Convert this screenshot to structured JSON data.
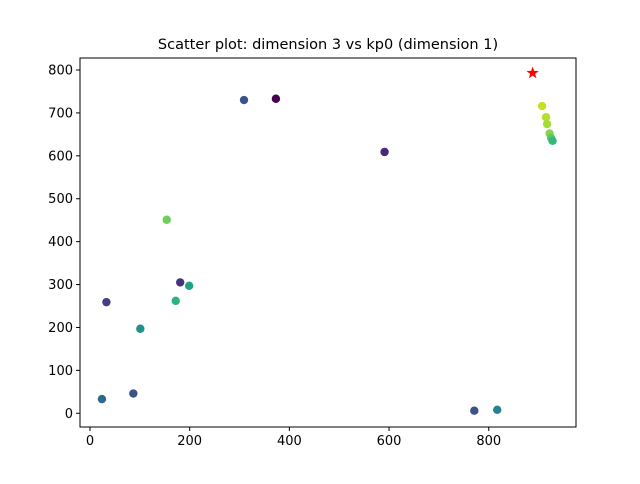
{
  "chart_data": {
    "type": "scatter",
    "title": "Scatter plot: dimension 3 vs kp0 (dimension 1)",
    "xlabel": "",
    "ylabel": "",
    "xlim": [
      -20,
      975
    ],
    "ylim": [
      -32,
      828
    ],
    "x_ticks": [
      0,
      200,
      400,
      600,
      800
    ],
    "y_ticks": [
      0,
      100,
      200,
      300,
      400,
      500,
      600,
      700,
      800
    ],
    "grid": false,
    "colormap": "viridis",
    "points": [
      {
        "x": 24,
        "y": 33,
        "color": "#31688e"
      },
      {
        "x": 87,
        "y": 46,
        "color": "#3b528b"
      },
      {
        "x": 33,
        "y": 259,
        "color": "#433e85"
      },
      {
        "x": 101,
        "y": 197,
        "color": "#21918c"
      },
      {
        "x": 172,
        "y": 262,
        "color": "#2db27d"
      },
      {
        "x": 181,
        "y": 305,
        "color": "#46337f"
      },
      {
        "x": 199,
        "y": 297,
        "color": "#1fa187"
      },
      {
        "x": 154,
        "y": 451,
        "color": "#6ece58"
      },
      {
        "x": 309,
        "y": 730,
        "color": "#3b528b"
      },
      {
        "x": 373,
        "y": 733,
        "color": "#440154"
      },
      {
        "x": 591,
        "y": 609,
        "color": "#482878"
      },
      {
        "x": 771,
        "y": 6,
        "color": "#3b528b"
      },
      {
        "x": 817,
        "y": 8,
        "color": "#26828e"
      },
      {
        "x": 907,
        "y": 716,
        "color": "#c8e020"
      },
      {
        "x": 915,
        "y": 690,
        "color": "#b5de2b"
      },
      {
        "x": 917,
        "y": 674,
        "color": "#a5db36"
      },
      {
        "x": 922,
        "y": 652,
        "color": "#86d549"
      },
      {
        "x": 925,
        "y": 642,
        "color": "#5ec962"
      },
      {
        "x": 928,
        "y": 635,
        "color": "#35b779"
      }
    ],
    "highlight": {
      "x": 888,
      "y": 793,
      "marker": "star",
      "color": "#ff0000"
    }
  }
}
